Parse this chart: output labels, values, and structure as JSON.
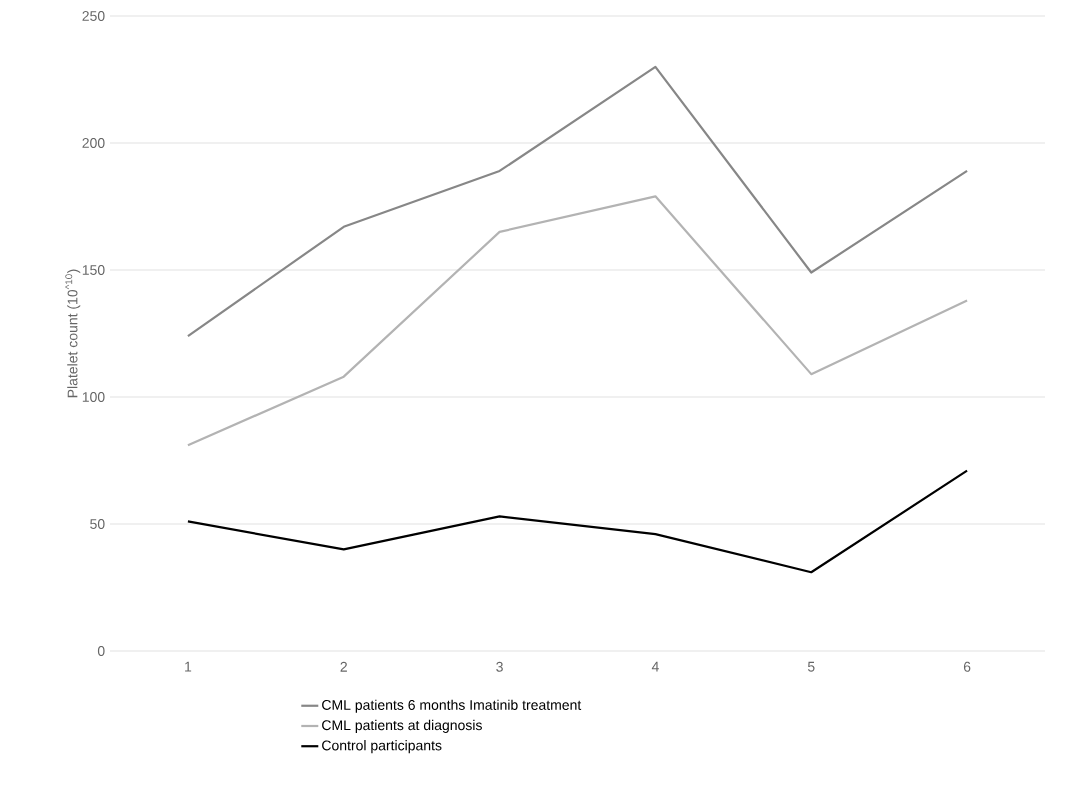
{
  "chart_data": {
    "type": "line",
    "ylabel": "Platelet count (10$^{^10}$)",
    "categories": [
      "1",
      "2",
      "3",
      "4",
      "5",
      "6"
    ],
    "series": [
      {
        "name": "CML patients 6 months Imatinib treatment",
        "color": "#878787",
        "values": [
          124,
          167,
          189,
          230,
          149,
          189
        ]
      },
      {
        "name": "CML patients at diagnosis",
        "color": "#b3b3b3",
        "values": [
          81,
          108,
          165,
          179,
          109,
          138
        ]
      },
      {
        "name": "Control participants",
        "color": "#000000",
        "values": [
          51,
          40,
          53,
          46,
          31,
          71
        ]
      }
    ],
    "ylim": [
      0,
      250
    ],
    "yticks": [
      0,
      50,
      100,
      150,
      200,
      250
    ],
    "grid": "y",
    "legend": "bottom",
    "marker": "none",
    "line_style": "solid"
  }
}
